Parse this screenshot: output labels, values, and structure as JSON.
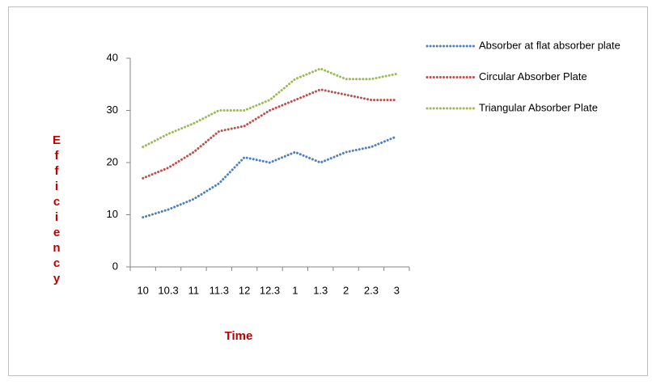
{
  "chart_data": {
    "type": "line",
    "x_label": "Time",
    "y_label": "Efficiency",
    "categories": [
      "10",
      "10.3",
      "11",
      "11.3",
      "12",
      "12.3",
      "1",
      "1.3",
      "2",
      "2.3",
      "3"
    ],
    "series": [
      {
        "name": "Absorber at flat absorber plate",
        "color": "#4f81bd",
        "values": [
          9.5,
          11,
          13,
          16,
          21,
          20,
          22,
          20,
          22,
          23,
          25
        ]
      },
      {
        "name": "Circular Absorber Plate",
        "color": "#c0504d",
        "values": [
          17,
          19,
          22,
          26,
          27,
          30,
          32,
          34,
          33,
          32,
          32
        ]
      },
      {
        "name": "Triangular Absorber Plate",
        "color": "#9bbb59",
        "values": [
          23,
          25.5,
          27.5,
          30,
          30,
          32,
          36,
          38,
          36,
          36,
          37
        ]
      }
    ],
    "ylim": [
      0,
      40
    ],
    "yticks": [
      0,
      10,
      20,
      30,
      40
    ],
    "legend": "right"
  }
}
